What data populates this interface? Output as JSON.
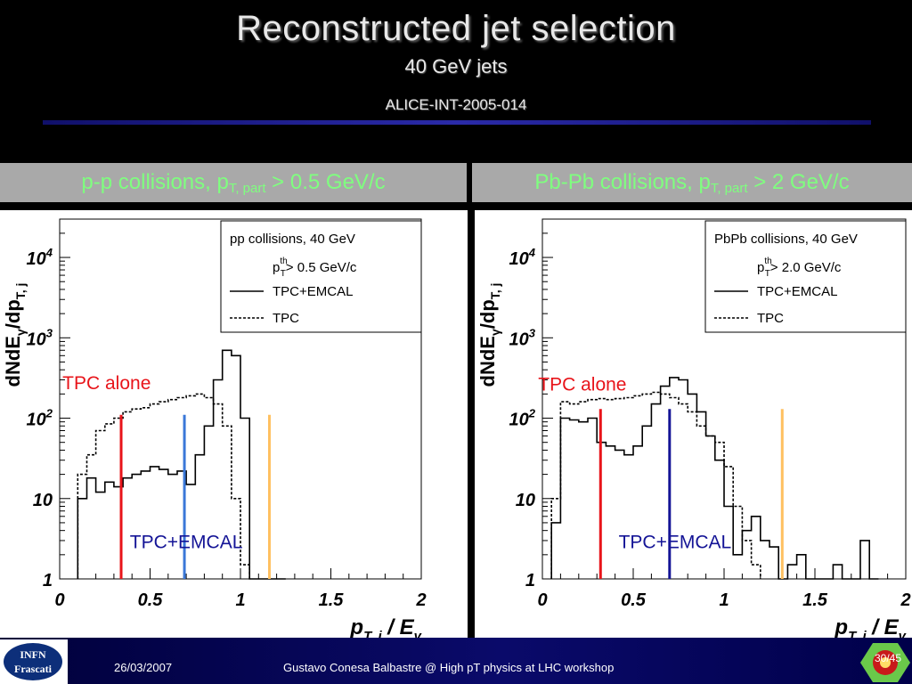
{
  "slide": {
    "title": "Reconstructed jet selection",
    "subtitle": "40 GeV jets",
    "reference": "ALICE-INT-2005-014"
  },
  "panels": {
    "left": {
      "head_text": "p-p collisions, p",
      "head_sub": "T, part",
      "head_rest": " > 0.5 GeV/c"
    },
    "right": {
      "head_text": "Pb-Pb collisions, p",
      "head_sub": "T, part",
      "head_rest": " > 2 GeV/c"
    }
  },
  "footer": {
    "logo_line1": "INFN",
    "logo_line2": "Frascati",
    "date": "26/03/2007",
    "credit": "Gustavo Conesa Balbastre @ High pT physics at LHC workshop",
    "page": "30/45"
  },
  "colors": {
    "green_head": "#7fff7f",
    "red": "#e8141a",
    "blue_line": "#3a78d8",
    "navy_line": "#141496",
    "orange": "#ffc060"
  },
  "chart_data": [
    {
      "type": "line",
      "ylabel_main": "dNdE",
      "ylabel_sub1": "γ",
      "ylabel_mid": "/dp",
      "ylabel_sub2": "T, j",
      "xlabel_main": "p",
      "xlabel_sub": "T, j",
      "xlabel_rest": " / E",
      "xlabel_sub2": "γ",
      "xlim": [
        0,
        2
      ],
      "ylim": [
        1,
        30000
      ],
      "yscale": "log",
      "xticks": [
        "0",
        "0.5",
        "1",
        "1.5",
        "2"
      ],
      "yticks": [
        {
          "value": 1,
          "label": "1"
        },
        {
          "value": 10,
          "label": "10"
        },
        {
          "value": 100,
          "label": "10",
          "exp": "2"
        },
        {
          "value": 1000,
          "label": "10",
          "exp": "3"
        },
        {
          "value": 10000,
          "label": "10",
          "exp": "4"
        }
      ],
      "legend": {
        "position": "top-right",
        "header": "pp collisions, 40 GeV",
        "cut_prefix": "p",
        "cut_sup": "th",
        "cut_sub": "T",
        "cut_rest": "> 0.5 GeV/c",
        "entries": [
          "TPC+EMCAL",
          "TPC"
        ]
      },
      "bin_width": 0.05,
      "series": [
        {
          "name": "TPC+EMCAL",
          "style": "solid",
          "x0": 0.1,
          "values": [
            10,
            18,
            12,
            16,
            14,
            18,
            20,
            22,
            25,
            23,
            20,
            22,
            15,
            35,
            80,
            300,
            700,
            600,
            100,
            1,
            1,
            1,
            1
          ]
        },
        {
          "name": "TPC",
          "style": "dashed",
          "x0": 0.1,
          "values": [
            20,
            35,
            70,
            85,
            100,
            120,
            130,
            135,
            150,
            160,
            170,
            180,
            190,
            200,
            180,
            150,
            80,
            10,
            1.5
          ]
        }
      ],
      "annotations": [
        {
          "text": "TPC alone",
          "color": "#e8141a",
          "line_x": 0.34,
          "line_color": "#e8141a",
          "line_y_top": 110,
          "label_x": 0.26,
          "label_y": 230
        },
        {
          "text": "TPC+EMCAL",
          "color": "#141496",
          "line_x": 0.69,
          "line_color": "#3a78d8",
          "line_y_top": 110,
          "label_x": 0.7,
          "label_y": 2.4
        },
        {
          "text": "",
          "color": "#ffc060",
          "line_x": 1.16,
          "line_color": "#ffc060",
          "line_y_top": 110
        }
      ]
    },
    {
      "type": "line",
      "ylabel_main": "dNdE",
      "ylabel_sub1": "γ",
      "ylabel_mid": "/dp",
      "ylabel_sub2": "T, j",
      "xlabel_main": "p",
      "xlabel_sub": "T, j",
      "xlabel_rest": " / E",
      "xlabel_sub2": "γ",
      "xlim": [
        0,
        2
      ],
      "ylim": [
        1,
        30000
      ],
      "yscale": "log",
      "xticks": [
        "0",
        "0.5",
        "1",
        "1.5",
        "2"
      ],
      "yticks": [
        {
          "value": 1,
          "label": "1"
        },
        {
          "value": 10,
          "label": "10"
        },
        {
          "value": 100,
          "label": "10",
          "exp": "2"
        },
        {
          "value": 1000,
          "label": "10",
          "exp": "3"
        },
        {
          "value": 10000,
          "label": "10",
          "exp": "4"
        }
      ],
      "legend": {
        "position": "top-right",
        "header": "PbPb collisions, 40 GeV",
        "cut_prefix": "p",
        "cut_sup": "th",
        "cut_sub": "T",
        "cut_rest": "> 2.0 GeV/c",
        "entries": [
          "TPC+EMCAL",
          "TPC"
        ]
      },
      "bin_width": 0.05,
      "series": [
        {
          "name": "TPC+EMCAL",
          "style": "solid",
          "x0": 0.05,
          "values": [
            5,
            100,
            95,
            90,
            100,
            50,
            45,
            40,
            35,
            45,
            80,
            150,
            250,
            320,
            300,
            200,
            120,
            60,
            30,
            8,
            2,
            4,
            6,
            3,
            2.5,
            1,
            1.5,
            2,
            1,
            1,
            1,
            1.5,
            1,
            1,
            3,
            1
          ]
        },
        {
          "name": "TPC",
          "style": "dashed",
          "x0": 0.05,
          "values": [
            10,
            160,
            150,
            160,
            170,
            175,
            170,
            175,
            180,
            190,
            200,
            210,
            200,
            180,
            150,
            120,
            80,
            60,
            50,
            25,
            8,
            3,
            1.5
          ]
        }
      ],
      "annotations": [
        {
          "text": "TPC alone",
          "color": "#e8141a",
          "line_x": 0.32,
          "line_color": "#e8141a",
          "line_y_top": 130,
          "label_x": 0.22,
          "label_y": 220
        },
        {
          "text": "TPC+EMCAL",
          "color": "#141496",
          "line_x": 0.7,
          "line_color": "#141496",
          "line_y_top": 130,
          "label_x": 0.73,
          "label_y": 2.4
        },
        {
          "text": "",
          "color": "#ffc060",
          "line_x": 1.32,
          "line_color": "#ffc060",
          "line_y_top": 130
        }
      ]
    }
  ]
}
